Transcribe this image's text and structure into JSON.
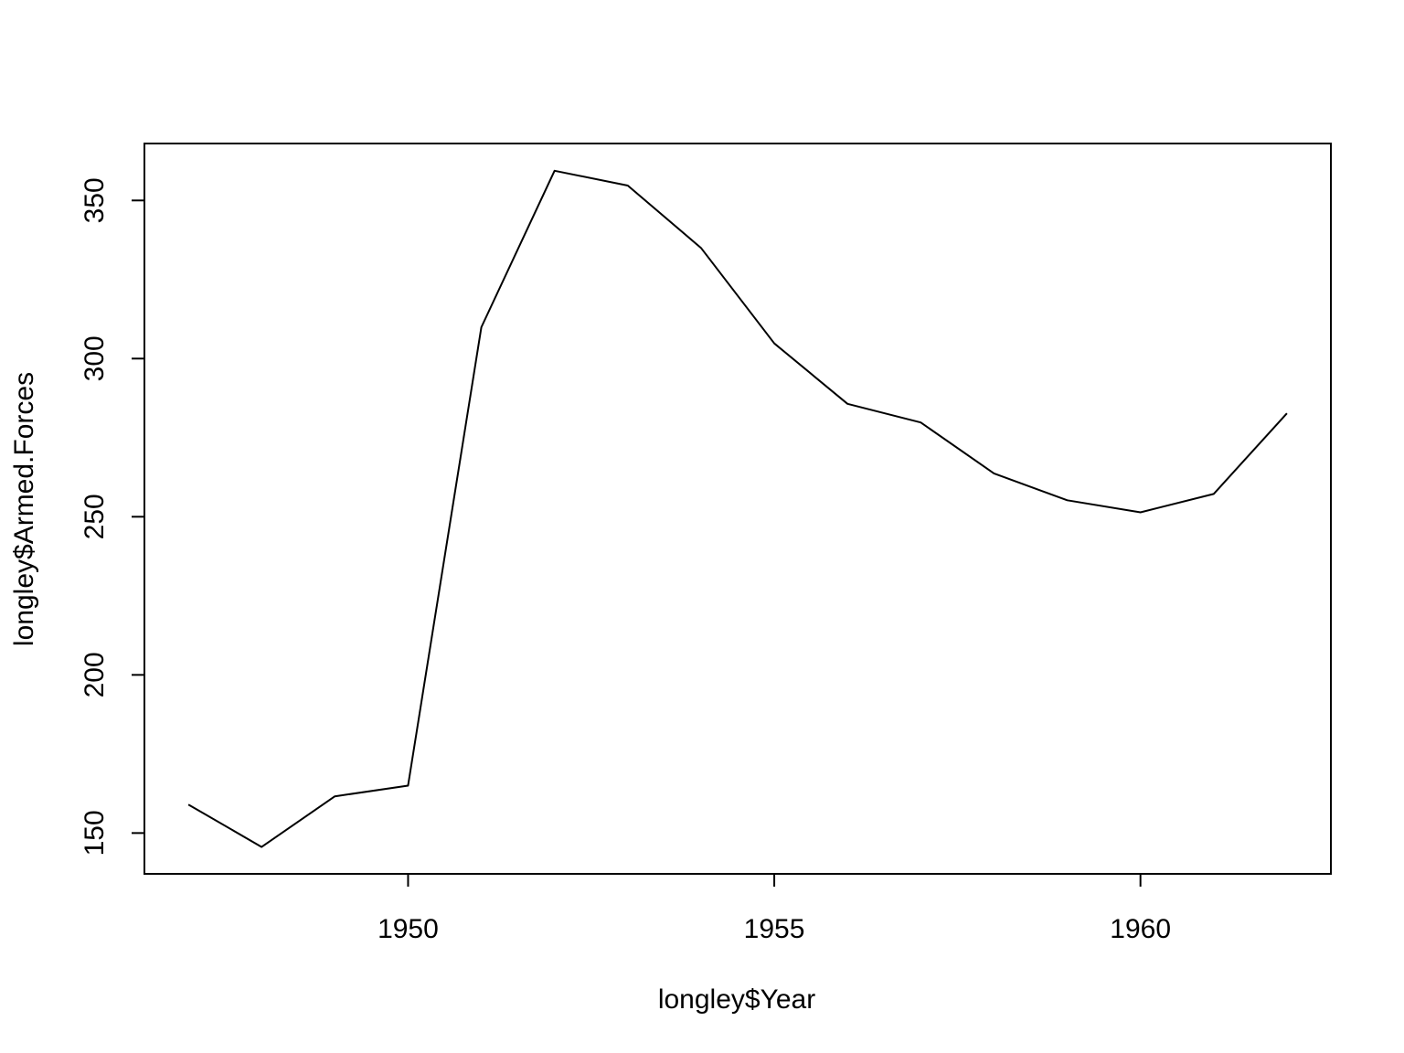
{
  "chart_data": {
    "type": "line",
    "title": "",
    "xlabel": "longley$Year",
    "ylabel": "longley$Armed.Forces",
    "x": [
      1947,
      1948,
      1949,
      1950,
      1951,
      1952,
      1953,
      1954,
      1955,
      1956,
      1957,
      1958,
      1959,
      1960,
      1961,
      1962
    ],
    "series": [
      {
        "values": [
          159.0,
          145.6,
          161.6,
          165.0,
          309.9,
          359.4,
          354.7,
          335.0,
          304.8,
          285.7,
          279.8,
          263.7,
          255.2,
          251.4,
          257.2,
          282.7
        ]
      }
    ],
    "xlim": [
      1946.4,
      1962.6
    ],
    "ylim": [
      137.1,
      368.0
    ],
    "x_ticks": [
      "1950",
      "1955",
      "1960"
    ],
    "y_ticks": [
      "150",
      "200",
      "250",
      "300",
      "350"
    ],
    "grid": false,
    "legend": "none",
    "line_color": "#000000"
  }
}
